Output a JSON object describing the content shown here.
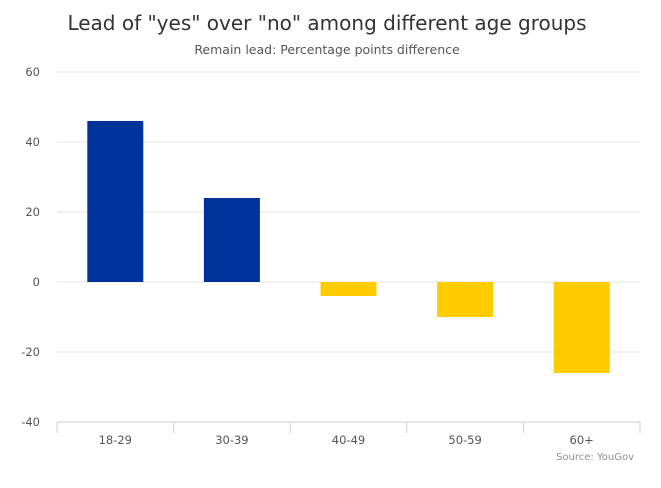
{
  "chart_data": {
    "type": "bar",
    "title": "Lead of \"yes\" over \"no\" among different age groups",
    "subtitle": "Remain lead: Percentage points difference",
    "categories": [
      "18-29",
      "30-39",
      "40-49",
      "50-59",
      "60+"
    ],
    "values": [
      46,
      24,
      -4,
      -10,
      -26
    ],
    "ylim": [
      -40,
      60
    ],
    "yticks": [
      60,
      40,
      20,
      0,
      -20,
      -40
    ],
    "xlabel": "",
    "ylabel": "",
    "grid": true,
    "legend": "none",
    "colors": {
      "positive": "#003399",
      "negative": "#FFCC00"
    },
    "source": "Source: YouGov"
  }
}
